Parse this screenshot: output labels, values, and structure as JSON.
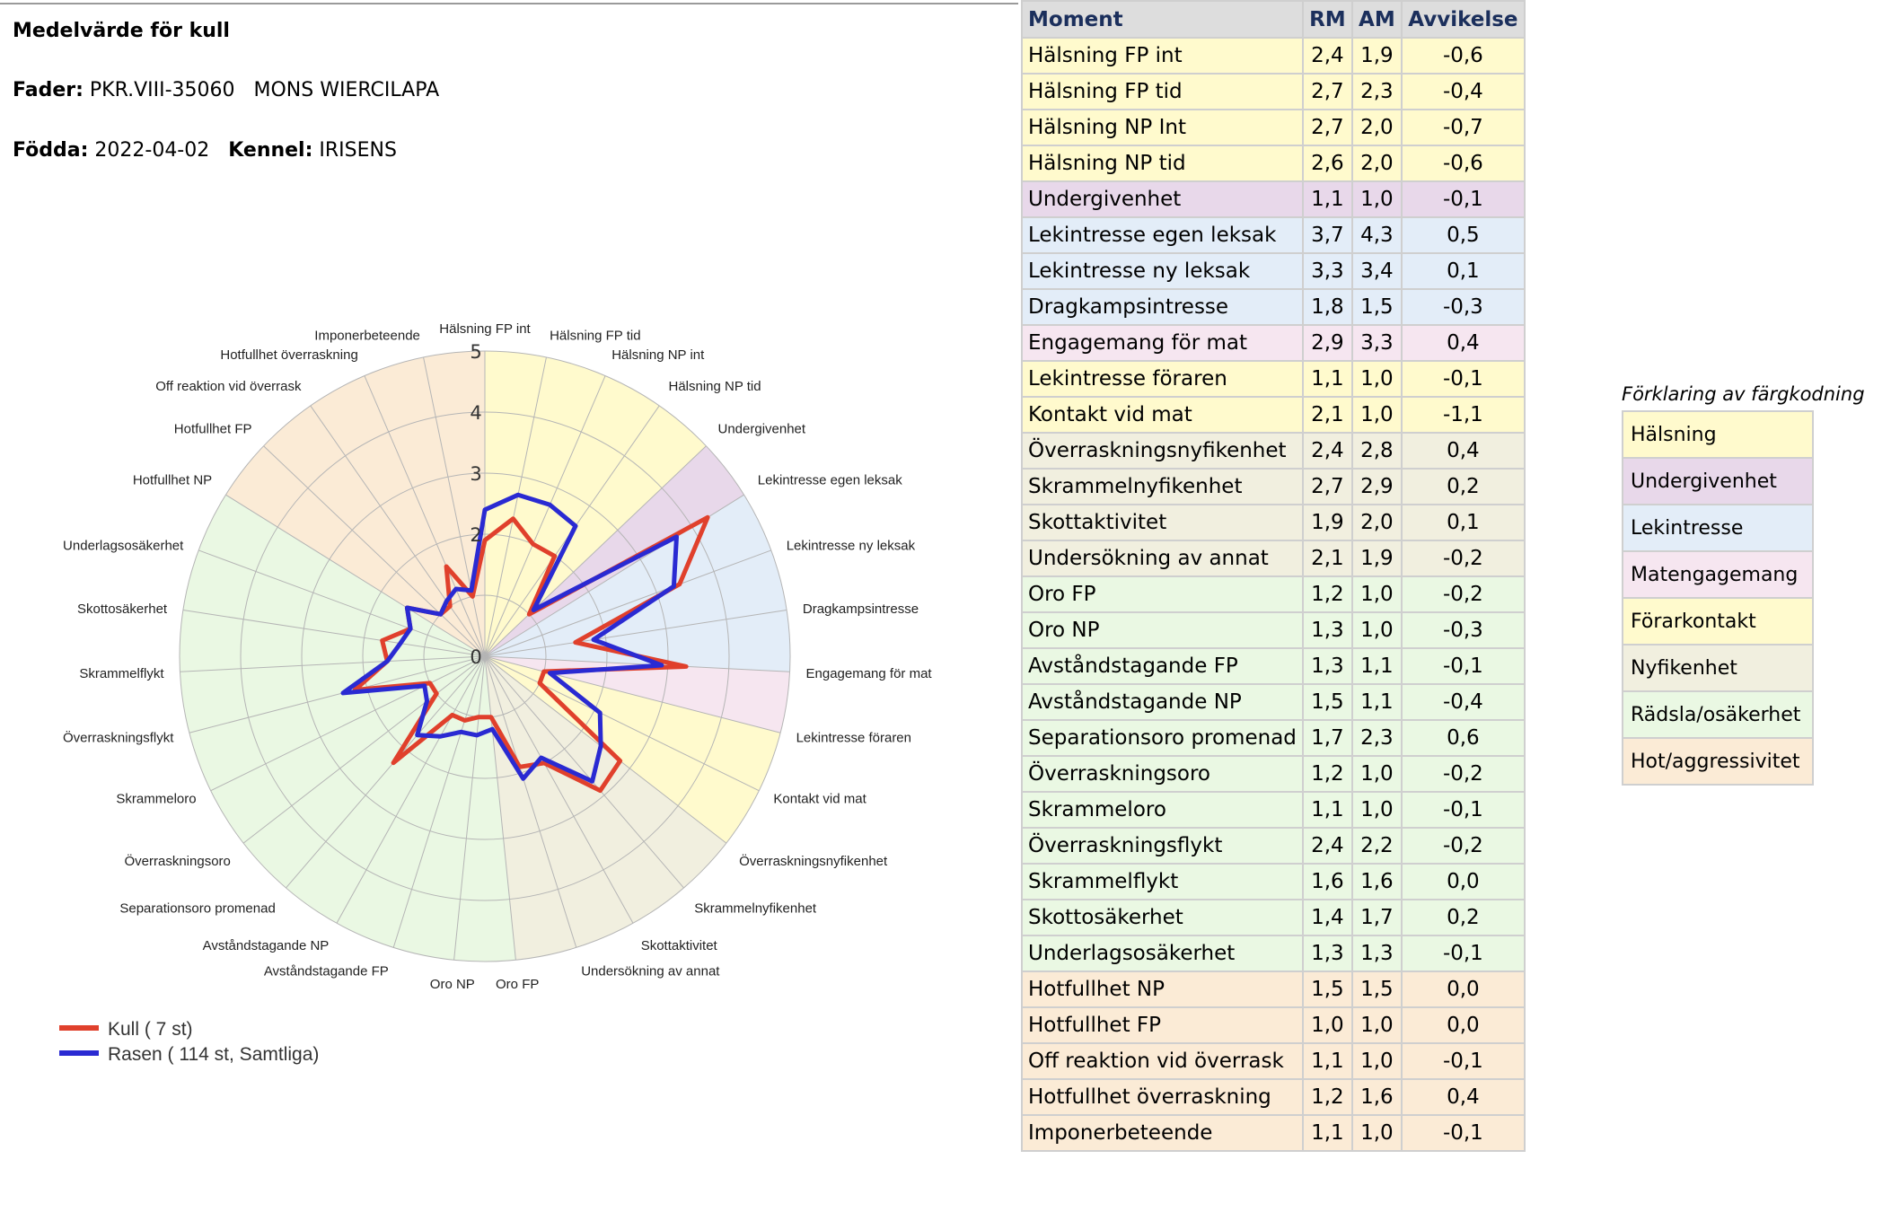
{
  "header": {
    "title": "Medelvärde för kull",
    "fader_label": "Fader:",
    "fader_value": "PKR.VIII-35060   MONS WIERCILAPA",
    "fodda_label": "Födda:",
    "fodda_value": "2022-04-02",
    "kennel_label": "Kennel:",
    "kennel_value": "IRISENS"
  },
  "colors": {
    "Hälsning": "#fffacd",
    "Undergivenhet": "#e8d8ea",
    "Lekintresse": "#e3edf8",
    "Matengagemang": "#f6e6f0",
    "Förarkontakt": "#fffacd",
    "Nyfikenhet": "#f1efdf",
    "Rädsla/osäkerhet": "#eaf8e3",
    "Hot/aggressivitet": "#fbebd6",
    "kull_line": "#e0402c",
    "rasen_line": "#2a2ad2",
    "header_text": "#1b2f5c"
  },
  "table": {
    "headers": [
      "Moment",
      "RM",
      "AM",
      "Avvikelse"
    ],
    "rows": [
      {
        "moment": "Hälsning FP int",
        "rm": "2,4",
        "am": "1,9",
        "avv": "-0,6",
        "group": "Hälsning"
      },
      {
        "moment": "Hälsning FP tid",
        "rm": "2,7",
        "am": "2,3",
        "avv": "-0,4",
        "group": "Hälsning"
      },
      {
        "moment": "Hälsning NP Int",
        "rm": "2,7",
        "am": "2,0",
        "avv": "-0,7",
        "group": "Hälsning"
      },
      {
        "moment": "Hälsning NP tid",
        "rm": "2,6",
        "am": "2,0",
        "avv": "-0,6",
        "group": "Hälsning"
      },
      {
        "moment": "Undergivenhet",
        "rm": "1,1",
        "am": "1,0",
        "avv": "-0,1",
        "group": "Undergivenhet"
      },
      {
        "moment": "Lekintresse egen leksak",
        "rm": "3,7",
        "am": "4,3",
        "avv": "0,5",
        "group": "Lekintresse"
      },
      {
        "moment": "Lekintresse ny leksak",
        "rm": "3,3",
        "am": "3,4",
        "avv": "0,1",
        "group": "Lekintresse"
      },
      {
        "moment": "Dragkampsintresse",
        "rm": "1,8",
        "am": "1,5",
        "avv": "-0,3",
        "group": "Lekintresse"
      },
      {
        "moment": "Engagemang för mat",
        "rm": "2,9",
        "am": "3,3",
        "avv": "0,4",
        "group": "Matengagemang"
      },
      {
        "moment": "Lekintresse föraren",
        "rm": "1,1",
        "am": "1,0",
        "avv": "-0,1",
        "group": "Förarkontakt"
      },
      {
        "moment": "Kontakt vid mat",
        "rm": "2,1",
        "am": "1,0",
        "avv": "-1,1",
        "group": "Förarkontakt"
      },
      {
        "moment": "Överraskningsnyfikenhet",
        "rm": "2,4",
        "am": "2,8",
        "avv": "0,4",
        "group": "Nyfikenhet"
      },
      {
        "moment": "Skrammelnyfikenhet",
        "rm": "2,7",
        "am": "2,9",
        "avv": "0,2",
        "group": "Nyfikenhet"
      },
      {
        "moment": "Skottaktivitet",
        "rm": "1,9",
        "am": "2,0",
        "avv": "0,1",
        "group": "Nyfikenhet"
      },
      {
        "moment": "Undersökning av annat",
        "rm": "2,1",
        "am": "1,9",
        "avv": "-0,2",
        "group": "Nyfikenhet"
      },
      {
        "moment": "Oro FP",
        "rm": "1,2",
        "am": "1,0",
        "avv": "-0,2",
        "group": "Rädsla/osäkerhet"
      },
      {
        "moment": "Oro NP",
        "rm": "1,3",
        "am": "1,0",
        "avv": "-0,3",
        "group": "Rädsla/osäkerhet"
      },
      {
        "moment": "Avståndstagande FP",
        "rm": "1,3",
        "am": "1,1",
        "avv": "-0,1",
        "group": "Rädsla/osäkerhet"
      },
      {
        "moment": "Avståndstagande NP",
        "rm": "1,5",
        "am": "1,1",
        "avv": "-0,4",
        "group": "Rädsla/osäkerhet"
      },
      {
        "moment": "Separationsoro promenad",
        "rm": "1,7",
        "am": "2,3",
        "avv": "0,6",
        "group": "Rädsla/osäkerhet"
      },
      {
        "moment": "Överraskningsoro",
        "rm": "1,2",
        "am": "1,0",
        "avv": "-0,2",
        "group": "Rädsla/osäkerhet"
      },
      {
        "moment": "Skrammeloro",
        "rm": "1,1",
        "am": "1,0",
        "avv": "-0,1",
        "group": "Rädsla/osäkerhet"
      },
      {
        "moment": "Överraskningsflykt",
        "rm": "2,4",
        "am": "2,2",
        "avv": "-0,2",
        "group": "Rädsla/osäkerhet"
      },
      {
        "moment": "Skrammelflykt",
        "rm": "1,6",
        "am": "1,6",
        "avv": "0,0",
        "group": "Rädsla/osäkerhet"
      },
      {
        "moment": "Skottosäkerhet",
        "rm": "1,4",
        "am": "1,7",
        "avv": "0,2",
        "group": "Rädsla/osäkerhet"
      },
      {
        "moment": "Underlagsosäkerhet",
        "rm": "1,3",
        "am": "1,3",
        "avv": "-0,1",
        "group": "Rädsla/osäkerhet"
      },
      {
        "moment": "Hotfullhet NP",
        "rm": "1,5",
        "am": "1,5",
        "avv": "0,0",
        "group": "Hot/aggressivitet"
      },
      {
        "moment": "Hotfullhet FP",
        "rm": "1,0",
        "am": "1,0",
        "avv": "0,0",
        "group": "Hot/aggressivitet"
      },
      {
        "moment": "Off reaktion vid överrask",
        "rm": "1,1",
        "am": "1,0",
        "avv": "-0,1",
        "group": "Hot/aggressivitet"
      },
      {
        "moment": "Hotfullhet överraskning",
        "rm": "1,2",
        "am": "1,6",
        "avv": "0,4",
        "group": "Hot/aggressivitet"
      },
      {
        "moment": "Imponerbeteende",
        "rm": "1,1",
        "am": "1,0",
        "avv": "-0,1",
        "group": "Hot/aggressivitet"
      }
    ]
  },
  "color_legend": {
    "title": "Förklaring av färgkodning",
    "items": [
      "Hälsning",
      "Undergivenhet",
      "Lekintresse",
      "Matengagemang",
      "Förarkontakt",
      "Nyfikenhet",
      "Rädsla/osäkerhet",
      "Hot/aggressivitet"
    ]
  },
  "chart_data": {
    "type": "radar",
    "categories": [
      "Hälsning FP int",
      "Hälsning FP tid",
      "Hälsning NP int",
      "Hälsning NP tid",
      "Undergivenhet",
      "Lekintresse egen leksak",
      "Lekintresse ny leksak",
      "Dragkampsintresse",
      "Engagemang för mat",
      "Lekintresse föraren",
      "Kontakt vid mat",
      "Överraskningsnyfikenhet",
      "Skrammelnyfikenhet",
      "Skottaktivitet",
      "Undersökning av annat",
      "Oro FP",
      "Oro NP",
      "Avståndstagande FP",
      "Avståndstagande NP",
      "Separationsoro promenad",
      "Överraskningsoro",
      "Skrammeloro",
      "Överraskningsflykt",
      "Skrammelflykt",
      "Skottosäkerhet",
      "Underlagsosäkerhet",
      "Hotfullhet NP",
      "Hotfullhet FP",
      "Off reaktion vid överrask",
      "Hotfullhet överraskning",
      "Imponerbeteende"
    ],
    "groups": [
      "Hälsning",
      "Hälsning",
      "Hälsning",
      "Hälsning",
      "Undergivenhet",
      "Lekintresse",
      "Lekintresse",
      "Lekintresse",
      "Matengagemang",
      "Förarkontakt",
      "Förarkontakt",
      "Nyfikenhet",
      "Nyfikenhet",
      "Nyfikenhet",
      "Nyfikenhet",
      "Rädsla/osäkerhet",
      "Rädsla/osäkerhet",
      "Rädsla/osäkerhet",
      "Rädsla/osäkerhet",
      "Rädsla/osäkerhet",
      "Rädsla/osäkerhet",
      "Rädsla/osäkerhet",
      "Rädsla/osäkerhet",
      "Rädsla/osäkerhet",
      "Rädsla/osäkerhet",
      "Rädsla/osäkerhet",
      "Hot/aggressivitet",
      "Hot/aggressivitet",
      "Hot/aggressivitet",
      "Hot/aggressivitet",
      "Hot/aggressivitet"
    ],
    "series": [
      {
        "name": "Kull ( 7 st)",
        "values": [
          1.9,
          2.3,
          2.0,
          2.0,
          1.0,
          4.3,
          3.4,
          1.5,
          3.3,
          1.0,
          1.0,
          2.8,
          2.9,
          2.0,
          1.9,
          1.0,
          1.0,
          1.1,
          1.1,
          2.3,
          1.0,
          1.0,
          2.2,
          1.6,
          1.7,
          1.3,
          1.5,
          1.0,
          1.0,
          1.6,
          1.0
        ]
      },
      {
        "name": "Rasen ( 114 st, Samtliga)",
        "values": [
          2.4,
          2.7,
          2.7,
          2.6,
          1.1,
          3.7,
          3.3,
          1.8,
          2.9,
          1.1,
          2.1,
          2.4,
          2.7,
          1.9,
          2.1,
          1.2,
          1.3,
          1.3,
          1.5,
          1.7,
          1.2,
          1.1,
          2.4,
          1.6,
          1.4,
          1.3,
          1.5,
          1.0,
          1.1,
          1.2,
          1.1
        ]
      }
    ],
    "r_ticks": [
      "0",
      "2",
      "3",
      "4",
      "5"
    ],
    "rlim": [
      0,
      5
    ],
    "legend_position": "bottom-left",
    "grid": true
  }
}
